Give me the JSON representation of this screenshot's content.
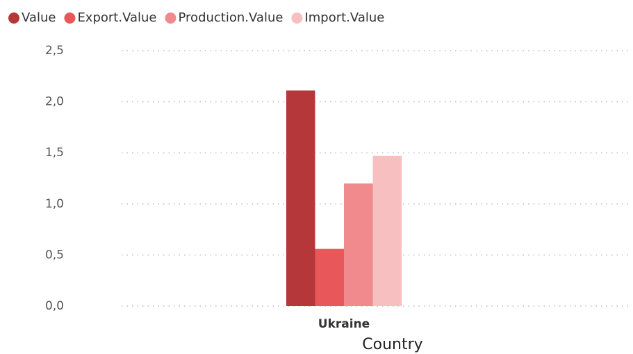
{
  "chart_data": {
    "type": "bar",
    "x_label": "Country",
    "categories": [
      "Ukraine"
    ],
    "series": [
      {
        "name": "Value",
        "color": "#b5373a",
        "values": [
          2.11
        ]
      },
      {
        "name": "Export.Value",
        "color": "#e8575a",
        "values": [
          0.56
        ]
      },
      {
        "name": "Production.Value",
        "color": "#f08a8d",
        "values": [
          1.2
        ]
      },
      {
        "name": "Import.Value",
        "color": "#f7bfc0",
        "values": [
          1.47
        ]
      }
    ],
    "ylim": [
      0,
      2.5
    ],
    "yticks": [
      {
        "value": 0,
        "label": "0,0"
      },
      {
        "value": 0.5,
        "label": "0,5"
      },
      {
        "value": 1,
        "label": "1,0"
      },
      {
        "value": 1.5,
        "label": "1,5"
      },
      {
        "value": 2,
        "label": "2,0"
      },
      {
        "value": 2.5,
        "label": "2,5"
      }
    ],
    "grid": true,
    "legend": "top-left"
  }
}
